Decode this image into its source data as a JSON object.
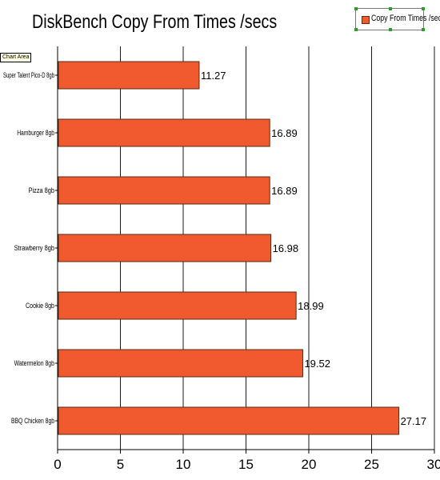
{
  "chart_data": {
    "type": "bar",
    "orientation": "horizontal",
    "title": "DiskBench Copy From Times /secs",
    "categories": [
      "Super Talent Pico-D 8gb",
      "Hamburger 8gb",
      "Pizza 8gb",
      "Strawberry 8gb",
      "Cookie 8gb",
      "Watermelon 8gb",
      "BBQ Chicken 8gb"
    ],
    "series": [
      {
        "name": "Copy From Times /secs",
        "values": [
          11.27,
          16.89,
          16.89,
          16.98,
          18.99,
          19.52,
          27.17
        ],
        "color": "#f05a2e"
      }
    ],
    "data_labels": [
      "11.27",
      "16.89",
      "16.89",
      "16.98",
      "18.99",
      "19.52",
      "27.17"
    ],
    "xlim": [
      0,
      30
    ],
    "x_ticks": [
      "0",
      "5",
      "10",
      "15",
      "20",
      "25",
      "30"
    ],
    "xlabel": "",
    "ylabel": "",
    "grid": true,
    "legend_position": "top-right"
  },
  "tooltip": "Chart Area",
  "colors": {
    "bar_fill": "#f05a2e",
    "bar_border": "#5a2a10",
    "grid": "#1a1a1a"
  }
}
